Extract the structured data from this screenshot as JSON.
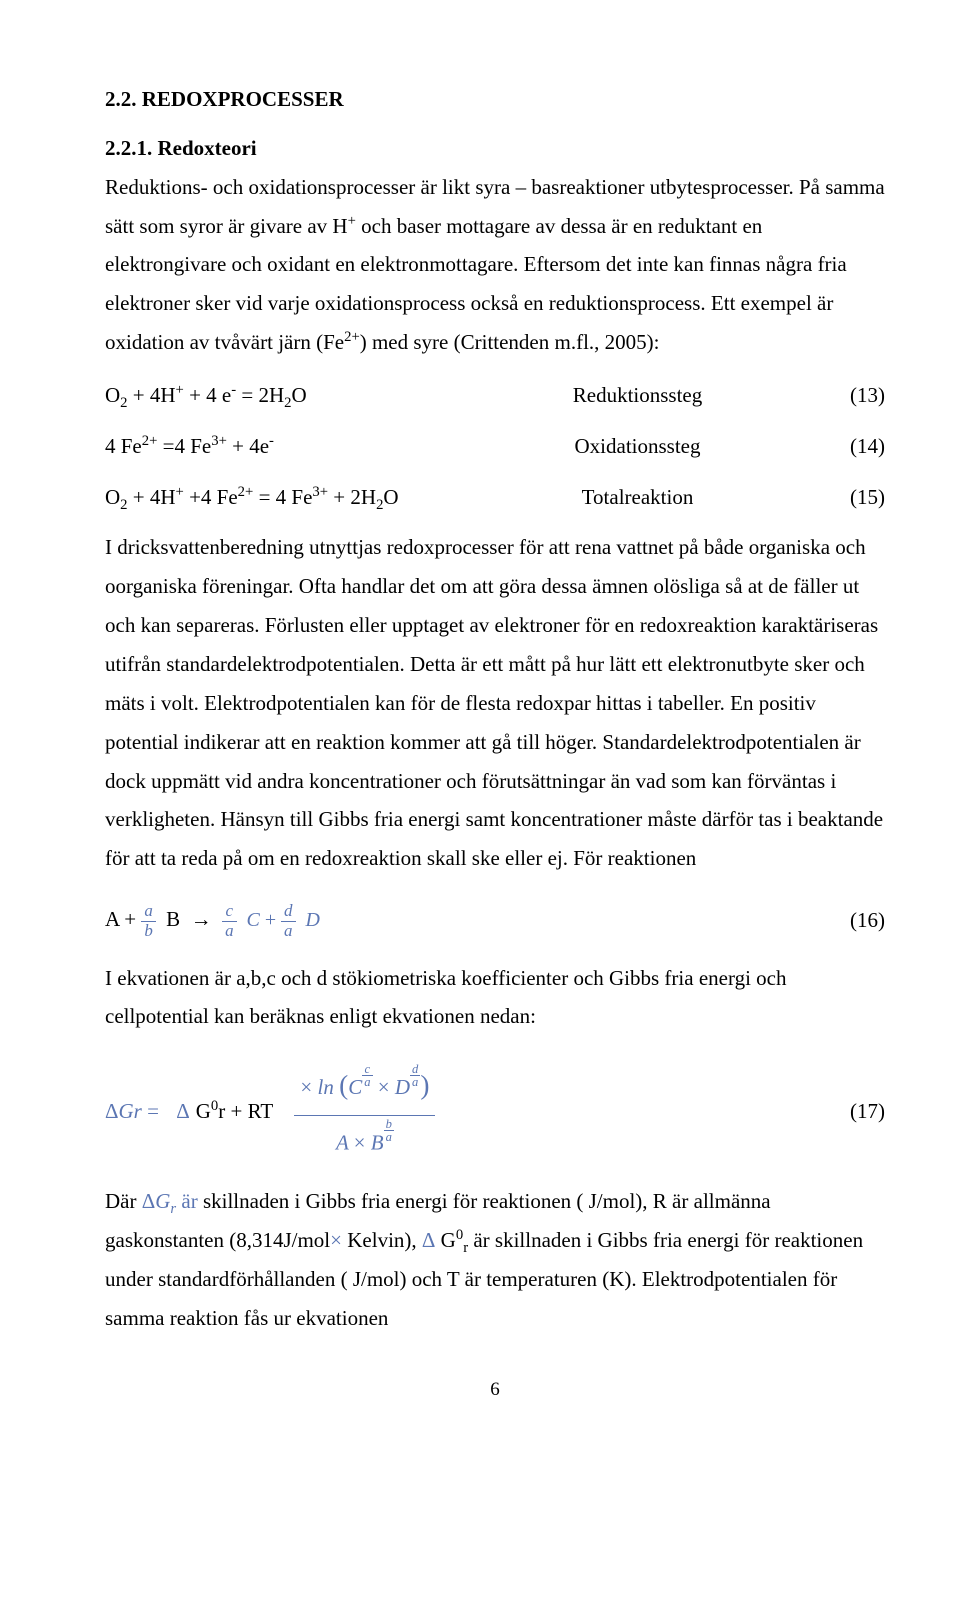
{
  "section": {
    "heading": "2.2. REDOXPROCESSER",
    "sub_heading": "2.2.1. Redoxteori"
  },
  "para1_a": "Reduktions- och oxidationsprocesser är likt syra – basreaktioner utbytesprocesser. På samma sätt som syror är givare av H",
  "para1_b": " och baser mottagare av dessa är en reduktant en elektrongivare och oxidant en elektronmottagare. Eftersom det inte kan finnas några fria elektroner sker vid varje oxidationsprocess också en reduktionsprocess. Ett exempel är oxidation av tvåvärt järn (Fe",
  "para1_c": ") med syre (Crittenden m.fl., 2005):",
  "eq13": {
    "label": "Reduktionssteg",
    "num": "(13)"
  },
  "eq14": {
    "label": "Oxidationssteg",
    "num": "(14)"
  },
  "eq15": {
    "label": "Totalreaktion",
    "num": "(15)"
  },
  "para2": "I dricksvattenberedning utnyttjas redoxprocesser för att rena vattnet på både organiska och oorganiska föreningar. Ofta handlar det om att göra dessa ämnen olösliga så at de fäller ut och kan separeras. Förlusten eller upptaget av elektroner för en redoxreaktion karaktäriseras utifrån standardelektrodpotentialen. Detta är ett mått på hur lätt ett elektronutbyte sker och mäts i volt. Elektrodpotentialen kan för de flesta redoxpar hittas i tabeller. En positiv potential indikerar att en reaktion kommer att gå till höger. Standardelektrodpotentialen är dock uppmätt vid andra koncentrationer och förutsättningar än vad som kan förväntas i verkligheten. Hänsyn till Gibbs fria energi samt koncentrationer måste därför tas i beaktande för att ta reda på om en redoxreaktion skall ske eller ej. För reaktionen",
  "eq16": {
    "num": "(16)"
  },
  "para3": "I ekvationen är a,b,c och d stökiometriska koefficienter och Gibbs fria energi och cellpotential kan beräknas enligt ekvationen nedan:",
  "eq17": {
    "num": "(17)"
  },
  "para4_a": "Där ",
  "para4_b": " skillnaden i Gibbs fria energi för reaktionen ( J/mol), R är allmänna gaskonstanten (8,314J/mol",
  "para4_c": " Kelvin), ",
  "para4_d": " är skillnaden i Gibbs fria energi för reaktionen under standardförhållanden ( J/mol) och T är temperaturen (K). Elektrodpotentialen för samma reaktion fås ur ekvationen",
  "dG0r_label_a": " G",
  "dG0r_label_b": "r",
  "pagenum": "6",
  "colors": {
    "formula": "#5b76b3",
    "text": "#000000",
    "bg": "#ffffff"
  }
}
